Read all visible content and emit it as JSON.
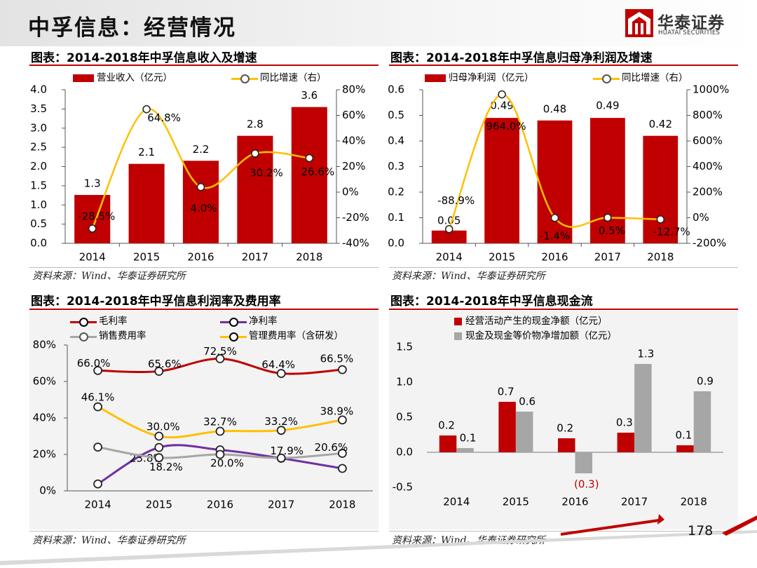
{
  "slide": {
    "title": "中孚信息：经营情况",
    "logo_cn": "华泰证券",
    "logo_en": "HUATAI SECURITIES",
    "page_number": "178",
    "source": "资料来源：Wind、华泰证券研究所"
  },
  "colors": {
    "red": "#c00000",
    "yellow": "#ffc000",
    "purple": "#7030a0",
    "gray": "#a6a6a6",
    "bg": "#f3f3f3"
  },
  "chart_data": [
    {
      "id": "revenue",
      "type": "bar+line",
      "title": "图表：2014-2018年中孚信息收入及增速",
      "categories": [
        "2014",
        "2015",
        "2016",
        "2017",
        "2018"
      ],
      "series": [
        {
          "name": "营业收入（亿元）",
          "kind": "bar",
          "axis": "left",
          "color": "#c00000",
          "values": [
            1.26,
            2.07,
            2.15,
            2.8,
            3.55
          ],
          "labels": [
            "1.3",
            "2.1",
            "2.2",
            "2.8",
            "3.6"
          ]
        },
        {
          "name": "同比增速（右）",
          "kind": "line",
          "axis": "right",
          "color": "#ffc000",
          "values": [
            -28.5,
            64.8,
            4.0,
            30.2,
            26.6
          ],
          "labels": [
            "-28.5%",
            "64.8%",
            "4.0%",
            "30.2%",
            "26.6%"
          ]
        }
      ],
      "left_axis": {
        "min": 0,
        "max": 4,
        "ticks": [
          "0.0",
          "0.5",
          "1.0",
          "1.5",
          "2.0",
          "2.5",
          "3.0",
          "3.5",
          "4.0"
        ]
      },
      "right_axis": {
        "min": -40,
        "max": 80,
        "ticks": [
          "-40%",
          "-20%",
          "0%",
          "20%",
          "40%",
          "60%",
          "80%"
        ]
      }
    },
    {
      "id": "net_profit",
      "type": "bar+line",
      "title": "图表：2014-2018年中孚信息归母净利润及增速",
      "categories": [
        "2014",
        "2015",
        "2016",
        "2017",
        "2018"
      ],
      "series": [
        {
          "name": "归母净利润（亿元）",
          "kind": "bar",
          "axis": "left",
          "color": "#c00000",
          "values": [
            0.05,
            0.49,
            0.48,
            0.49,
            0.42
          ],
          "labels": [
            "0.05",
            "0.49",
            "0.48",
            "0.49",
            "0.42"
          ]
        },
        {
          "name": "同比增速（右）",
          "kind": "line",
          "axis": "right",
          "color": "#ffc000",
          "values": [
            -88.9,
            964.0,
            -1.4,
            0.5,
            -12.7
          ],
          "labels": [
            "-88.9%",
            "964.0%",
            "-1.4%",
            "0.5%",
            "-12.7%"
          ]
        }
      ],
      "left_axis": {
        "min": 0,
        "max": 0.6,
        "ticks": [
          "0.0",
          "0.1",
          "0.2",
          "0.3",
          "0.4",
          "0.5",
          "0.6"
        ]
      },
      "right_axis": {
        "min": -200,
        "max": 1000,
        "ticks": [
          "-200%",
          "0%",
          "200%",
          "400%",
          "600%",
          "800%",
          "1000%"
        ]
      }
    },
    {
      "id": "margins",
      "type": "line",
      "title": "图表：2014-2018年中孚信息利润率及费用率",
      "categories": [
        "2014",
        "2015",
        "2016",
        "2017",
        "2018"
      ],
      "series": [
        {
          "name": "毛利率",
          "color": "#c00000",
          "values": [
            66.0,
            65.6,
            72.5,
            64.4,
            66.5
          ],
          "labels": [
            "66.0%",
            "65.6%",
            "72.5%",
            "64.4%",
            "66.5%"
          ]
        },
        {
          "name": "净利率",
          "color": "#7030a0",
          "values": [
            3.8,
            23.8,
            22.5,
            17.9,
            12.3
          ],
          "labels": [
            "",
            "23.8%",
            "",
            "17.9%",
            ""
          ]
        },
        {
          "name": "销售费用率",
          "color": "#a6a6a6",
          "values": [
            24.0,
            18.2,
            20.0,
            18.0,
            20.6
          ],
          "labels": [
            "",
            "18.2%",
            "20.0%",
            "",
            "20.6%"
          ]
        },
        {
          "name": "管理费用率（含研发）",
          "color": "#ffc000",
          "values": [
            46.1,
            30.0,
            32.7,
            33.2,
            38.9
          ],
          "labels": [
            "46.1%",
            "30.0%",
            "32.7%",
            "33.2%",
            "38.9%"
          ]
        }
      ],
      "y_axis": {
        "min": 0,
        "max": 80,
        "ticks": [
          "0%",
          "20%",
          "40%",
          "60%",
          "80%"
        ]
      }
    },
    {
      "id": "cashflow",
      "type": "bar",
      "title": "图表：2014-2018年中孚信息现金流",
      "categories": [
        "2014",
        "2015",
        "2016",
        "2017",
        "2018"
      ],
      "series": [
        {
          "name": "经营活动产生的现金净额（亿元）",
          "color": "#c00000",
          "values": [
            0.24,
            0.72,
            0.2,
            0.28,
            0.1
          ],
          "labels": [
            "0.2",
            "0.7",
            "0.2",
            "0.3",
            "0.1"
          ]
        },
        {
          "name": "现金及现金等价物净增加额（亿元）",
          "color": "#a6a6a6",
          "values": [
            0.06,
            0.58,
            -0.3,
            1.26,
            0.87
          ],
          "labels": [
            "0.1",
            "0.6",
            "(0.3)",
            "1.3",
            "0.9"
          ]
        }
      ],
      "y_axis": {
        "min": -0.5,
        "max": 1.5,
        "ticks": [
          "-0.5",
          "0.0",
          "0.5",
          "1.0",
          "1.5"
        ]
      }
    }
  ]
}
